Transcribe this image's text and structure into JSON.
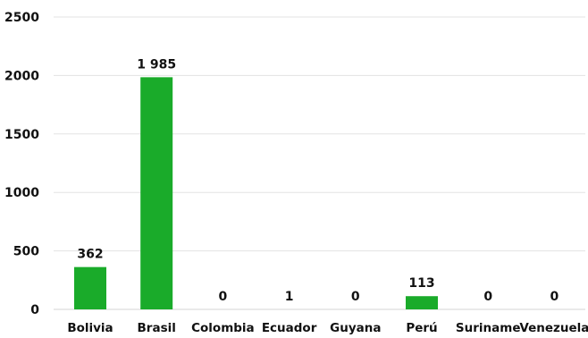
{
  "chart_data": {
    "type": "bar",
    "categories": [
      "Bolivia",
      "Brasil",
      "Colombia",
      "Ecuador",
      "Guyana",
      "Perú",
      "Suriname",
      "Venezuela"
    ],
    "values": [
      362,
      1985,
      0,
      1,
      0,
      113,
      0,
      0
    ],
    "data_labels": [
      "362",
      "1 985",
      "0",
      "1",
      "0",
      "113",
      "0",
      "0"
    ],
    "ylim": [
      0,
      2500
    ],
    "yticks": [
      0,
      500,
      1000,
      1500,
      2000,
      2500
    ],
    "title": "",
    "xlabel": "",
    "ylabel": "",
    "grid": true,
    "legend": "none",
    "bar_color": "#1aab2a"
  }
}
